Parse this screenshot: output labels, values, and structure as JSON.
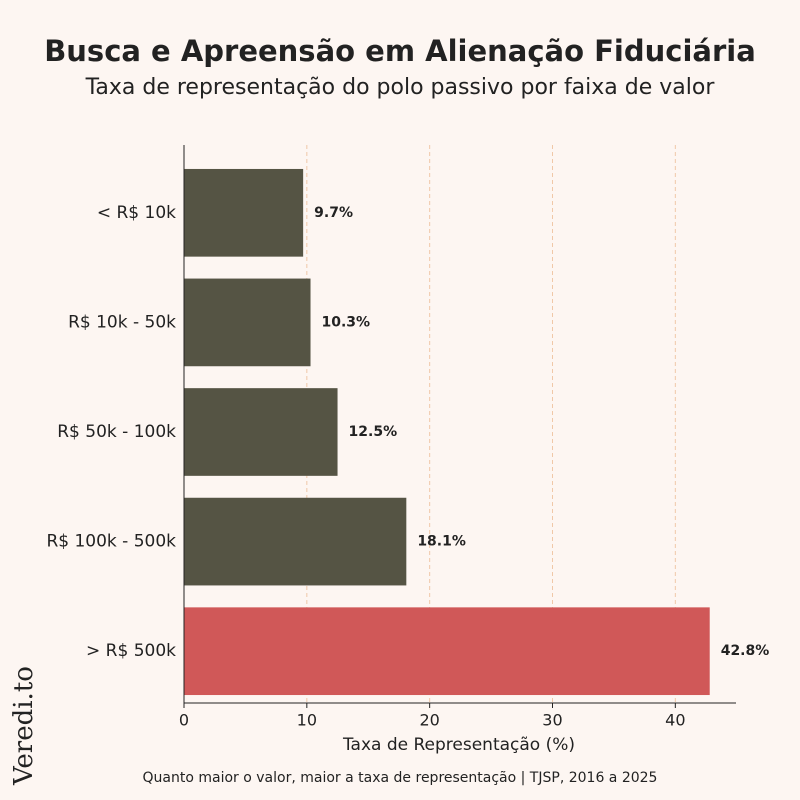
{
  "chart_data": {
    "type": "barh",
    "title": "Busca e Apreensão em Alienação Fiduciária",
    "subtitle": "Taxa de representação do polo passivo por faixa de valor",
    "x_label": "Taxa de Representação (%)",
    "footnote": "Quanto maior o valor, maior a taxa de representação | TJSP, 2016 a 2025",
    "watermark": "Veredi.to",
    "categories": [
      "< R$ 10k",
      "R$ 10k - 50k",
      "R$ 50k - 100k",
      "R$ 100k - 500k",
      "> R$ 500k"
    ],
    "values": [
      9.7,
      10.3,
      12.5,
      18.1,
      42.8
    ],
    "value_labels": [
      "9.7%",
      "10.3%",
      "12.5%",
      "18.1%",
      "42.8%"
    ],
    "colors": [
      "#555444",
      "#555444",
      "#555444",
      "#555444",
      "#d05858"
    ],
    "xlim": [
      0,
      44.94
    ],
    "xticks": [
      0,
      10,
      20,
      30,
      40
    ],
    "grid": true
  }
}
